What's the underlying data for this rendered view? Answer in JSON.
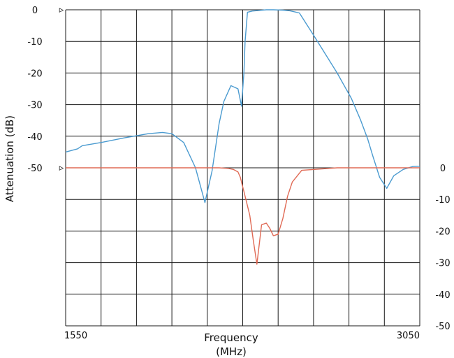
{
  "chart_data": {
    "type": "line",
    "xlabel_line1": "Frequency",
    "xlabel_line2": "(MHz)",
    "ylabel": "Attenuation (dB)",
    "xlim": [
      1550,
      3050
    ],
    "x_tick_labels": [
      {
        "value": 1550,
        "label": "1550"
      },
      {
        "value": 3050,
        "label": "3050"
      }
    ],
    "left_axis": {
      "ylim": [
        -100,
        0
      ],
      "tick_labels": [
        {
          "value": 0,
          "label": "0"
        },
        {
          "value": -10,
          "label": "-10"
        },
        {
          "value": -20,
          "label": "-20"
        },
        {
          "value": -30,
          "label": "-30"
        },
        {
          "value": -40,
          "label": "-40"
        },
        {
          "value": -50,
          "label": "-50"
        }
      ]
    },
    "right_axis": {
      "ylim": [
        -50,
        0
      ],
      "tick_labels": [
        {
          "value": 0,
          "label": "0"
        },
        {
          "value": -10,
          "label": "-10"
        },
        {
          "value": -20,
          "label": "-20"
        },
        {
          "value": -30,
          "label": "-30"
        },
        {
          "value": -40,
          "label": "-40"
        },
        {
          "value": -50,
          "label": "-50"
        }
      ]
    },
    "grid": true,
    "grid_x_divisions": 10,
    "grid_y_divisions": 10,
    "series": [
      {
        "axis": "left",
        "color": "#4b9bd0",
        "x": [
          1550,
          1600,
          1620,
          1700,
          1800,
          1900,
          1960,
          2000,
          2050,
          2100,
          2140,
          2170,
          2200,
          2220,
          2250,
          2280,
          2295,
          2305,
          2310,
          2320,
          2340,
          2370,
          2400,
          2430,
          2470,
          2500,
          2540,
          2600,
          2650,
          2700,
          2760,
          2800,
          2830,
          2850,
          2880,
          2910,
          2940,
          2980,
          3020,
          3050
        ],
        "y": [
          -45,
          -44,
          -43,
          -42,
          -40.5,
          -39.2,
          -38.8,
          -39.2,
          -42,
          -50,
          -61,
          -51,
          -36,
          -29,
          -24,
          -25,
          -30.5,
          -20,
          -10,
          -0.8,
          -0.4,
          -0.2,
          0,
          0,
          -0.1,
          -0.3,
          -1,
          -8,
          -14,
          -20,
          -28,
          -35,
          -41,
          -46,
          -53,
          -56.5,
          -52.5,
          -50.5,
          -49.6,
          -49.5
        ]
      },
      {
        "axis": "right",
        "color": "#e06a55",
        "x": [
          1550,
          1700,
          1900,
          2100,
          2200,
          2240,
          2260,
          2280,
          2290,
          2300,
          2315,
          2330,
          2345,
          2360,
          2380,
          2400,
          2415,
          2430,
          2450,
          2470,
          2490,
          2510,
          2550,
          2700,
          2900,
          3050
        ],
        "y": [
          0,
          0,
          0,
          0,
          0,
          -0.2,
          -0.5,
          -1.3,
          -3,
          -6,
          -10.5,
          -15,
          -23,
          -30.5,
          -18,
          -17.5,
          -19.2,
          -21.5,
          -21,
          -16,
          -9,
          -4.5,
          -0.8,
          0,
          0,
          0
        ]
      }
    ],
    "markers": [
      {
        "value": 0,
        "label": "▹"
      },
      {
        "value": -50,
        "label": "▹"
      }
    ]
  }
}
